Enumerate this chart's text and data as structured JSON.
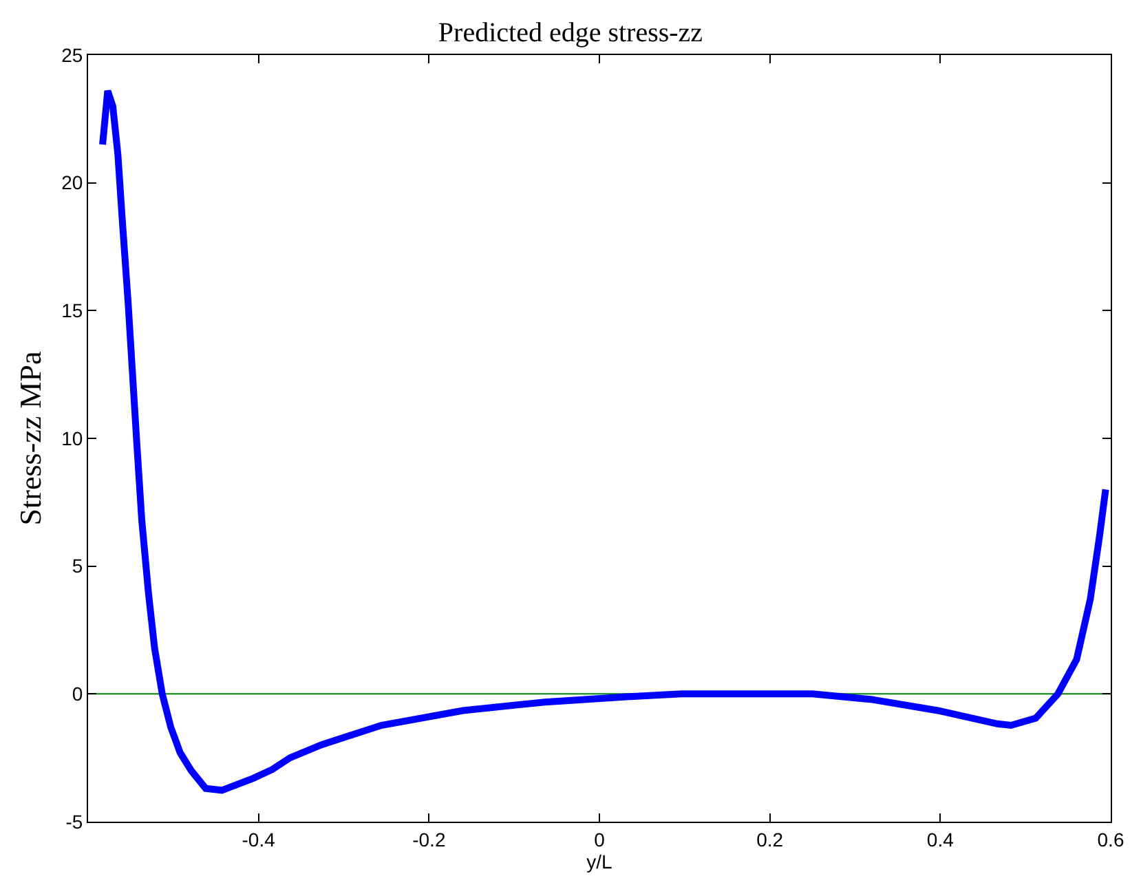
{
  "chart_data": {
    "type": "line",
    "title": "Predicted edge stress-zz",
    "xlabel": "y/L",
    "ylabel": "Stress-zz MPa",
    "x": [
      -0.583,
      -0.577,
      -0.571,
      -0.565,
      -0.56,
      -0.553,
      -0.548,
      -0.543,
      -0.537,
      -0.529,
      -0.522,
      -0.513,
      -0.503,
      -0.492,
      -0.479,
      -0.462,
      -0.443,
      -0.406,
      -0.384,
      -0.363,
      -0.326,
      -0.256,
      -0.16,
      -0.064,
      0.032,
      0.096,
      0.25,
      0.32,
      0.397,
      0.467,
      0.483,
      0.512,
      0.538,
      0.56,
      0.576,
      0.587,
      0.594
    ],
    "series": [
      {
        "color": "#0000ff",
        "values": [
          21.5,
          23.6,
          23.0,
          21.1,
          18.6,
          15.3,
          12.6,
          9.9,
          6.8,
          3.9,
          1.8,
          0.0,
          -1.3,
          -2.3,
          -3.0,
          -3.7,
          -3.77,
          -3.3,
          -2.96,
          -2.5,
          -1.99,
          -1.23,
          -0.65,
          -0.32,
          -0.11,
          0.0,
          0.0,
          -0.22,
          -0.65,
          -1.17,
          -1.23,
          -0.95,
          0.0,
          1.35,
          3.7,
          6.2,
          8.0
        ]
      }
    ],
    "xlim": [
      -0.6,
      0.6
    ],
    "xticks": [
      -0.4,
      -0.2,
      0,
      0.2,
      0.4,
      0.6
    ],
    "ylim": [
      -5,
      25
    ],
    "yticks": [
      -5,
      0,
      5,
      10,
      15,
      20,
      25
    ],
    "ref_lines": [
      {
        "axis": "y",
        "value": 0,
        "color": "#008000"
      }
    ],
    "grid": false,
    "legend": false,
    "marker": "none",
    "line_style": "solid"
  }
}
